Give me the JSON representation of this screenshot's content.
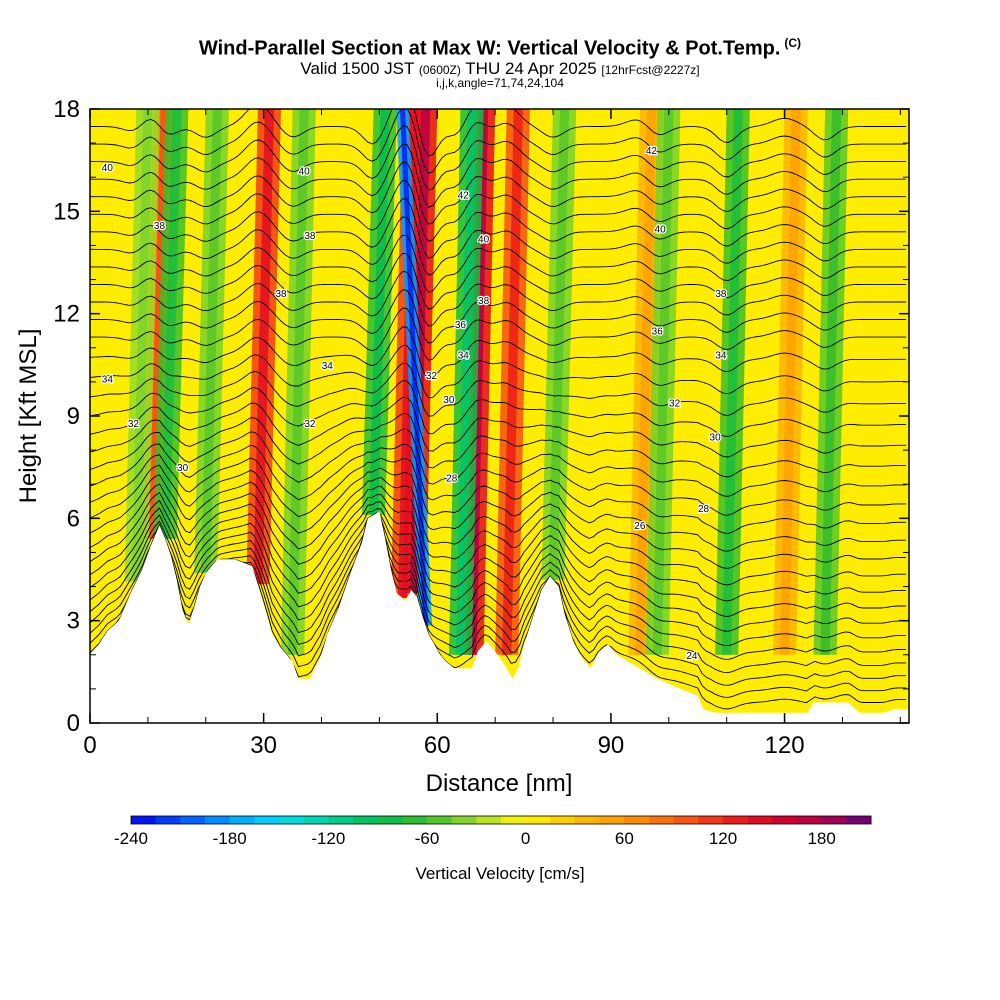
{
  "header": {
    "title": "Wind-Parallel Section at Max W: Vertical Velocity & Pot.Temp.",
    "copyright": "(C)",
    "subtitle_main": "Valid 1500 JST",
    "subtitle_utc": "(0600Z)",
    "subtitle_date": "THU 24 Apr 2025",
    "subtitle_fcst": "[12hrFcst@2227z]",
    "subtitle3": "i,j,k,angle=71,74,24,104"
  },
  "chart_data": {
    "type": "heatmap",
    "title": "Wind-Parallel Section at Max W: Vertical Velocity & Pot.Temp.",
    "xlabel": "Distance [nm]",
    "ylabel": "Height [Kft MSL]",
    "xlim": [
      0,
      141.5
    ],
    "ylim": [
      0,
      18
    ],
    "x_ticks": [
      0,
      30,
      60,
      90,
      120
    ],
    "y_ticks": [
      0,
      3,
      6,
      9,
      12,
      15,
      18
    ],
    "terrain_kft": [
      [
        0,
        2.0
      ],
      [
        1.5,
        2.3
      ],
      [
        3,
        2.7
      ],
      [
        5,
        3.0
      ],
      [
        7,
        3.8
      ],
      [
        9,
        4.5
      ],
      [
        10.5,
        5.2
      ],
      [
        12,
        5.8
      ],
      [
        13,
        5.4
      ],
      [
        14,
        4.9
      ],
      [
        15,
        4.2
      ],
      [
        16,
        3.3
      ],
      [
        17,
        2.9
      ],
      [
        18,
        3.4
      ],
      [
        19,
        4.0
      ],
      [
        20,
        4.4
      ],
      [
        22,
        4.8
      ],
      [
        25,
        4.8
      ],
      [
        28,
        4.6
      ],
      [
        29.5,
        3.8
      ],
      [
        30.5,
        3.2
      ],
      [
        31.5,
        2.6
      ],
      [
        33,
        2.2
      ],
      [
        35,
        1.8
      ],
      [
        36,
        1.3
      ],
      [
        38,
        1.3
      ],
      [
        40,
        2.0
      ],
      [
        41,
        2.6
      ],
      [
        43,
        3.4
      ],
      [
        45,
        4.4
      ],
      [
        47,
        5.3
      ],
      [
        48,
        6.0
      ],
      [
        50,
        6.2
      ],
      [
        51,
        5.4
      ],
      [
        52,
        4.5
      ],
      [
        53,
        3.8
      ],
      [
        54.5,
        3.6
      ],
      [
        55.5,
        3.9
      ],
      [
        56.5,
        3.7
      ],
      [
        57.5,
        3.1
      ],
      [
        58.5,
        2.6
      ],
      [
        59.5,
        2.3
      ],
      [
        60.5,
        2.0
      ],
      [
        61.5,
        1.8
      ],
      [
        63,
        1.6
      ],
      [
        66,
        1.6
      ],
      [
        67,
        2.1
      ],
      [
        68.5,
        2.4
      ],
      [
        70,
        2.1
      ],
      [
        72,
        1.6
      ],
      [
        73,
        1.3
      ],
      [
        74,
        1.6
      ],
      [
        75,
        2.3
      ],
      [
        76.5,
        3.1
      ],
      [
        78,
        3.9
      ],
      [
        79.5,
        4.3
      ],
      [
        81,
        4.0
      ],
      [
        82,
        3.2
      ],
      [
        83.5,
        2.4
      ],
      [
        85,
        1.9
      ],
      [
        86.5,
        1.6
      ],
      [
        88,
        2.1
      ],
      [
        89.5,
        2.3
      ],
      [
        91,
        2.0
      ],
      [
        94,
        1.7
      ],
      [
        98,
        1.3
      ],
      [
        102,
        1.0
      ],
      [
        105,
        0.8
      ],
      [
        106,
        0.4
      ],
      [
        108,
        0.3
      ],
      [
        114,
        0.3
      ],
      [
        120,
        0.3
      ],
      [
        124,
        0.3
      ],
      [
        125,
        0.6
      ],
      [
        131,
        0.6
      ],
      [
        133,
        0.3
      ],
      [
        137,
        0.3
      ],
      [
        139,
        0.4
      ],
      [
        141.5,
        0.4
      ]
    ],
    "updrafts_cm_s": [
      {
        "x": 11,
        "value": 80
      },
      {
        "x": 29,
        "value": 110
      },
      {
        "x": 54,
        "value": 110
      },
      {
        "x": 56,
        "value": 140
      },
      {
        "x": 66,
        "value": 140
      },
      {
        "x": 72,
        "value": 100
      },
      {
        "x": 95,
        "value": 40
      },
      {
        "x": 120,
        "value": 40
      }
    ],
    "downdrafts_cm_s": [
      {
        "x": 8,
        "value": -30
      },
      {
        "x": 13,
        "value": -60
      },
      {
        "x": 20,
        "value": -40
      },
      {
        "x": 35,
        "value": -40
      },
      {
        "x": 49,
        "value": -70
      },
      {
        "x": 58,
        "value": -180
      },
      {
        "x": 64,
        "value": -80
      },
      {
        "x": 80,
        "value": -40
      },
      {
        "x": 98,
        "value": -40
      },
      {
        "x": 110,
        "value": -60
      },
      {
        "x": 127,
        "value": -50
      }
    ],
    "theta_contour_labels": [
      {
        "value": "40",
        "x": 3,
        "y": 16.3
      },
      {
        "value": "38",
        "x": 12,
        "y": 14.6
      },
      {
        "value": "40",
        "x": 37,
        "y": 16.2
      },
      {
        "value": "38",
        "x": 38,
        "y": 14.3
      },
      {
        "value": "38",
        "x": 33,
        "y": 12.6
      },
      {
        "value": "34",
        "x": 3,
        "y": 10.1
      },
      {
        "value": "32",
        "x": 7.5,
        "y": 8.8
      },
      {
        "value": "30",
        "x": 16,
        "y": 7.5
      },
      {
        "value": "34",
        "x": 41,
        "y": 10.5
      },
      {
        "value": "32",
        "x": 38,
        "y": 8.8
      },
      {
        "value": "28",
        "x": 62.5,
        "y": 7.2
      },
      {
        "value": "42",
        "x": 64.5,
        "y": 15.5
      },
      {
        "value": "40",
        "x": 68,
        "y": 14.2
      },
      {
        "value": "38",
        "x": 68,
        "y": 12.4
      },
      {
        "value": "36",
        "x": 64,
        "y": 11.7
      },
      {
        "value": "34",
        "x": 64.5,
        "y": 10.8
      },
      {
        "value": "32",
        "x": 59,
        "y": 10.2
      },
      {
        "value": "30",
        "x": 62,
        "y": 9.5
      },
      {
        "value": "42",
        "x": 97,
        "y": 16.8
      },
      {
        "value": "40",
        "x": 98.5,
        "y": 14.5
      },
      {
        "value": "38",
        "x": 109,
        "y": 12.6
      },
      {
        "value": "36",
        "x": 98,
        "y": 11.5
      },
      {
        "value": "34",
        "x": 109,
        "y": 10.8
      },
      {
        "value": "32",
        "x": 101,
        "y": 9.4
      },
      {
        "value": "30",
        "x": 108,
        "y": 8.4
      },
      {
        "value": "28",
        "x": 106,
        "y": 6.3
      },
      {
        "value": "26",
        "x": 95,
        "y": 5.8
      },
      {
        "value": "24",
        "x": 104,
        "y": 2.0
      }
    ],
    "colorbar": {
      "label": "Vertical Velocity [cm/s]",
      "min": -240,
      "max": 210,
      "step": 15,
      "tick_labels": [
        "-240",
        "-180",
        "-120",
        "-60",
        "0",
        "60",
        "120",
        "180"
      ],
      "tick_values": [
        -240,
        -180,
        -120,
        -60,
        0,
        60,
        120,
        180
      ]
    },
    "grid": false
  }
}
